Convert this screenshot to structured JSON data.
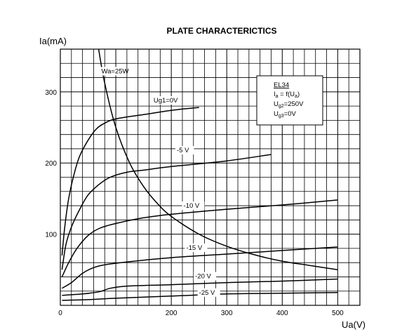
{
  "chart_data": {
    "type": "line",
    "title": "PLATE CHARACTERICTICS",
    "ylabel": "Ia(mA)",
    "xlabel": "Ua(V)",
    "xlim": [
      0,
      540
    ],
    "ylim": [
      0,
      360
    ],
    "x_ticks": [
      0,
      200,
      300,
      400,
      500
    ],
    "y_ticks": [
      100,
      200,
      300
    ],
    "grid": true,
    "legend_box": {
      "tube": "EL34",
      "line1_main": "I",
      "line1_sub": "a",
      "line1_rest": " = f(U",
      "line1_sub2": "a",
      "line1_end": ")",
      "line2_main": "U",
      "line2_sub": "g2",
      "line2_rest": "=250V",
      "line3_main": "U",
      "line3_sub": "g3",
      "line3_rest": "=0V"
    },
    "series": [
      {
        "name": "Ug1=0V",
        "label_pos": [
          168,
          285
        ],
        "points": [
          [
            3,
            70
          ],
          [
            8,
            110
          ],
          [
            15,
            150
          ],
          [
            25,
            185
          ],
          [
            35,
            210
          ],
          [
            50,
            232
          ],
          [
            65,
            248
          ],
          [
            80,
            256
          ],
          [
            100,
            262
          ],
          [
            150,
            268
          ],
          [
            200,
            274
          ],
          [
            250,
            278
          ]
        ]
      },
      {
        "name": "-5 V",
        "label_pos": [
          210,
          215
        ],
        "points": [
          [
            3,
            50
          ],
          [
            10,
            85
          ],
          [
            20,
            110
          ],
          [
            35,
            135
          ],
          [
            50,
            155
          ],
          [
            70,
            170
          ],
          [
            90,
            180
          ],
          [
            120,
            187
          ],
          [
            150,
            190
          ],
          [
            200,
            195
          ],
          [
            300,
            203
          ],
          [
            380,
            212
          ]
        ]
      },
      {
        "name": "-10 V",
        "label_pos": [
          222,
          137
        ],
        "points": [
          [
            3,
            40
          ],
          [
            15,
            60
          ],
          [
            30,
            80
          ],
          [
            50,
            98
          ],
          [
            70,
            108
          ],
          [
            100,
            115
          ],
          [
            150,
            123
          ],
          [
            200,
            128
          ],
          [
            300,
            135
          ],
          [
            400,
            141
          ],
          [
            500,
            148
          ]
        ]
      },
      {
        "name": "-15 V",
        "label_pos": [
          227,
          78
        ],
        "points": [
          [
            3,
            24
          ],
          [
            20,
            32
          ],
          [
            40,
            45
          ],
          [
            60,
            53
          ],
          [
            80,
            57
          ],
          [
            120,
            61
          ],
          [
            200,
            67
          ],
          [
            300,
            72
          ],
          [
            400,
            77
          ],
          [
            500,
            82
          ]
        ]
      },
      {
        "name": "-20 V",
        "label_pos": [
          243,
          38
        ],
        "points": [
          [
            3,
            14
          ],
          [
            40,
            16
          ],
          [
            70,
            19
          ],
          [
            90,
            24
          ],
          [
            120,
            27
          ],
          [
            200,
            29
          ],
          [
            300,
            32
          ],
          [
            400,
            34
          ],
          [
            500,
            37
          ]
        ]
      },
      {
        "name": "-25 V",
        "label_pos": [
          250,
          15
        ],
        "points": [
          [
            3,
            7
          ],
          [
            50,
            8
          ],
          [
            100,
            10
          ],
          [
            200,
            13
          ],
          [
            300,
            16
          ],
          [
            400,
            17
          ],
          [
            500,
            18
          ]
        ]
      },
      {
        "name": "Wa=25W",
        "kind": "hyperbola",
        "label_pos": [
          74,
          326
        ],
        "points": [
          [
            69,
            360
          ],
          [
            80,
            312
          ],
          [
            100,
            250
          ],
          [
            125,
            200
          ],
          [
            150,
            167
          ],
          [
            175,
            143
          ],
          [
            200,
            125
          ],
          [
            250,
            100
          ],
          [
            300,
            83
          ],
          [
            350,
            71
          ],
          [
            400,
            62
          ],
          [
            450,
            56
          ],
          [
            500,
            50
          ]
        ]
      }
    ]
  }
}
